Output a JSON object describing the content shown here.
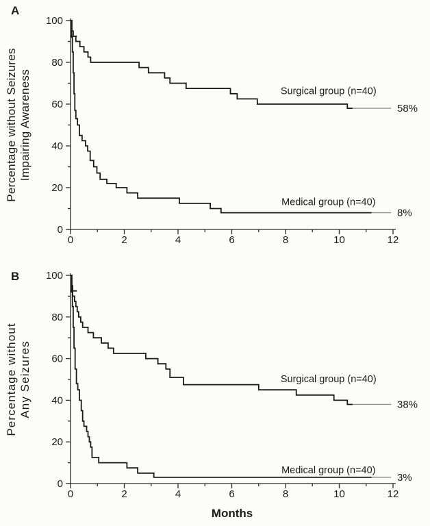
{
  "figure": {
    "background": "#fcfcf9",
    "months_label": "Months",
    "panels": [
      {
        "letter": "A",
        "ylabel_line1": "Percentage without Seizures",
        "ylabel_line2": "Impairing Awareness"
      },
      {
        "letter": "B",
        "ylabel_line1": "Percentage without",
        "ylabel_line2": "Any Seizures"
      }
    ],
    "colors": {
      "curve": "#1a1a1a",
      "axis": "#2b2b2b",
      "leader": "#8f8f8f",
      "text": "#1b1b1b"
    }
  },
  "chart_data": [
    {
      "type": "line",
      "step": true,
      "panel": "A",
      "title": "",
      "ylabel": "Percentage without Seizures Impairing Awareness",
      "xlabel": "Months",
      "xlim": [
        0,
        12
      ],
      "ylim": [
        0,
        100
      ],
      "xticks": [
        0,
        2,
        4,
        6,
        8,
        10,
        12
      ],
      "xticks_minor": [
        1,
        3,
        5,
        7,
        9,
        11
      ],
      "yticks": [
        0,
        20,
        40,
        60,
        80,
        100
      ],
      "yticks_minor": [
        10,
        30,
        50,
        70,
        90
      ],
      "grid": false,
      "series": [
        {
          "name": "Surgical group (n=40)",
          "final_label": "58%",
          "final_value": 58,
          "label_anchor": {
            "x": 9.6,
            "y": 66
          },
          "censor": {
            "x": 0.12,
            "y": 92.5
          },
          "leader_from": 10.5,
          "points": [
            [
              0,
              100
            ],
            [
              0.05,
              95
            ],
            [
              0.1,
              92.5
            ],
            [
              0.2,
              90
            ],
            [
              0.35,
              87.5
            ],
            [
              0.5,
              85
            ],
            [
              0.65,
              82.5
            ],
            [
              0.75,
              80
            ],
            [
              2.55,
              77.5
            ],
            [
              2.9,
              75
            ],
            [
              3.5,
              72.5
            ],
            [
              3.7,
              70
            ],
            [
              4.3,
              67.5
            ],
            [
              5.95,
              65
            ],
            [
              6.2,
              62.5
            ],
            [
              6.95,
              60
            ],
            [
              10.3,
              58
            ]
          ]
        },
        {
          "name": "Medical group (n=40)",
          "final_label": "8%",
          "final_value": 8,
          "label_anchor": {
            "x": 9.6,
            "y": 13
          },
          "censor": null,
          "leader_from": 11.2,
          "points": [
            [
              0,
              100
            ],
            [
              0.04,
              92
            ],
            [
              0.07,
              85
            ],
            [
              0.1,
              75
            ],
            [
              0.13,
              65
            ],
            [
              0.16,
              57
            ],
            [
              0.2,
              53
            ],
            [
              0.26,
              50
            ],
            [
              0.33,
              45
            ],
            [
              0.43,
              42.5
            ],
            [
              0.56,
              40
            ],
            [
              0.64,
              37.5
            ],
            [
              0.73,
              33
            ],
            [
              0.86,
              30
            ],
            [
              0.98,
              27
            ],
            [
              1.1,
              24
            ],
            [
              1.35,
              22
            ],
            [
              1.7,
              20
            ],
            [
              2.1,
              17.5
            ],
            [
              2.5,
              15
            ],
            [
              4.05,
              12.5
            ],
            [
              5.2,
              10
            ],
            [
              5.6,
              8
            ]
          ]
        }
      ]
    },
    {
      "type": "line",
      "step": true,
      "panel": "B",
      "title": "",
      "ylabel": "Percentage without Any Seizures",
      "xlabel": "Months",
      "xlim": [
        0,
        12
      ],
      "ylim": [
        0,
        100
      ],
      "xticks": [
        0,
        2,
        4,
        6,
        8,
        10,
        12
      ],
      "xticks_minor": [
        1,
        3,
        5,
        7,
        9,
        11
      ],
      "yticks": [
        0,
        20,
        40,
        60,
        80,
        100
      ],
      "yticks_minor": [
        10,
        30,
        50,
        70,
        90
      ],
      "grid": false,
      "series": [
        {
          "name": "Surgical group (n=40)",
          "final_label": "38%",
          "final_value": 38,
          "label_anchor": {
            "x": 9.6,
            "y": 50
          },
          "censor": {
            "x": 0.12,
            "y": 92.5
          },
          "leader_from": 10.5,
          "points": [
            [
              0,
              100
            ],
            [
              0.05,
              95
            ],
            [
              0.08,
              90
            ],
            [
              0.15,
              87.5
            ],
            [
              0.2,
              85
            ],
            [
              0.25,
              82.5
            ],
            [
              0.3,
              80
            ],
            [
              0.38,
              77.5
            ],
            [
              0.45,
              75
            ],
            [
              0.65,
              72.5
            ],
            [
              0.85,
              70
            ],
            [
              1.15,
              67.5
            ],
            [
              1.4,
              65
            ],
            [
              1.6,
              62.5
            ],
            [
              2.8,
              60
            ],
            [
              3.25,
              57.5
            ],
            [
              3.55,
              55
            ],
            [
              3.7,
              51
            ],
            [
              4.2,
              47.5
            ],
            [
              7.0,
              45
            ],
            [
              8.4,
              42.5
            ],
            [
              9.8,
              40
            ],
            [
              10.3,
              38
            ]
          ]
        },
        {
          "name": "Medical group (n=40)",
          "final_label": "3%",
          "final_value": 3,
          "label_anchor": {
            "x": 9.6,
            "y": 6.3
          },
          "censor": null,
          "leader_from": 11.2,
          "points": [
            [
              0,
              100
            ],
            [
              0.04,
              92
            ],
            [
              0.07,
              85
            ],
            [
              0.1,
              75
            ],
            [
              0.13,
              65
            ],
            [
              0.17,
              55
            ],
            [
              0.22,
              48
            ],
            [
              0.27,
              45
            ],
            [
              0.33,
              40
            ],
            [
              0.4,
              35
            ],
            [
              0.45,
              30
            ],
            [
              0.5,
              27.5
            ],
            [
              0.6,
              25
            ],
            [
              0.65,
              22.5
            ],
            [
              0.7,
              20
            ],
            [
              0.75,
              17.5
            ],
            [
              0.8,
              12.5
            ],
            [
              1.05,
              10
            ],
            [
              2.1,
              7.5
            ],
            [
              2.5,
              5
            ],
            [
              3.1,
              3
            ]
          ]
        }
      ]
    }
  ]
}
